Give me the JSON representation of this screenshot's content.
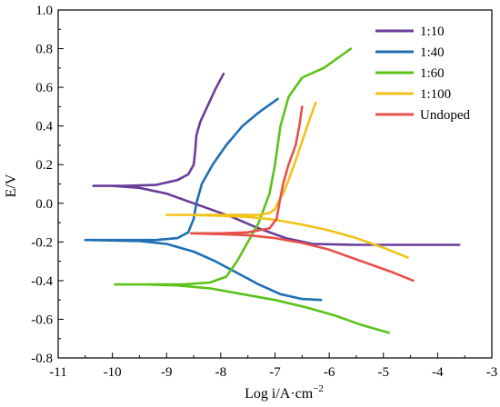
{
  "chart_data": {
    "type": "line",
    "xlabel": "Log i/A·cm",
    "xlabel_sup": "−2",
    "ylabel": "E/V",
    "xlim": [
      -11,
      -3
    ],
    "ylim": [
      -0.8,
      1.0
    ],
    "x_ticks": [
      -11,
      -10,
      -9,
      -8,
      -7,
      -6,
      -5,
      -4,
      -3
    ],
    "x_tick_labels": [
      "-11",
      "-10",
      "-9",
      "-8",
      "-7",
      "-6",
      "-5",
      "-4",
      "-3"
    ],
    "y_ticks": [
      -0.8,
      -0.6,
      -0.4,
      -0.2,
      0.0,
      0.2,
      0.4,
      0.6,
      0.8,
      1.0
    ],
    "y_tick_labels": [
      "-0.8",
      "-0.6",
      "-0.4",
      "-0.2",
      "0.0",
      "0.2",
      "0.4",
      "0.6",
      "0.8",
      "1.0"
    ],
    "grid": false,
    "legend_position": "top-right",
    "series": [
      {
        "name": "1:10",
        "color": "#6a3d9a",
        "points": [
          [
            -3.6,
            -0.215
          ],
          [
            -4.5,
            -0.215
          ],
          [
            -5.5,
            -0.215
          ],
          [
            -6.3,
            -0.21
          ],
          [
            -6.8,
            -0.18
          ],
          [
            -7.3,
            -0.13
          ],
          [
            -7.8,
            -0.07
          ],
          [
            -8.2,
            -0.03
          ],
          [
            -8.6,
            0.01
          ],
          [
            -9.0,
            0.05
          ],
          [
            -9.5,
            0.08
          ],
          [
            -10.0,
            0.09
          ],
          [
            -10.35,
            0.09
          ],
          [
            -9.8,
            0.09
          ],
          [
            -9.2,
            0.095
          ],
          [
            -8.8,
            0.12
          ],
          [
            -8.6,
            0.15
          ],
          [
            -8.5,
            0.2
          ],
          [
            -8.47,
            0.28
          ],
          [
            -8.45,
            0.35
          ],
          [
            -8.38,
            0.42
          ],
          [
            -8.25,
            0.5
          ],
          [
            -8.1,
            0.59
          ],
          [
            -7.95,
            0.67
          ]
        ]
      },
      {
        "name": "1:40",
        "color": "#1f6fb2",
        "points": [
          [
            -6.15,
            -0.5
          ],
          [
            -6.5,
            -0.495
          ],
          [
            -6.9,
            -0.47
          ],
          [
            -7.3,
            -0.42
          ],
          [
            -7.7,
            -0.36
          ],
          [
            -8.1,
            -0.3
          ],
          [
            -8.5,
            -0.25
          ],
          [
            -9.0,
            -0.21
          ],
          [
            -9.5,
            -0.195
          ],
          [
            -10.5,
            -0.19
          ],
          [
            -9.8,
            -0.19
          ],
          [
            -9.2,
            -0.19
          ],
          [
            -8.8,
            -0.18
          ],
          [
            -8.6,
            -0.15
          ],
          [
            -8.5,
            -0.08
          ],
          [
            -8.45,
            0.0
          ],
          [
            -8.35,
            0.1
          ],
          [
            -8.15,
            0.2
          ],
          [
            -7.9,
            0.3
          ],
          [
            -7.6,
            0.4
          ],
          [
            -7.3,
            0.47
          ],
          [
            -6.95,
            0.54
          ]
        ]
      },
      {
        "name": "1:60",
        "color": "#5cc21a",
        "points": [
          [
            -4.9,
            -0.67
          ],
          [
            -5.4,
            -0.63
          ],
          [
            -5.9,
            -0.58
          ],
          [
            -6.4,
            -0.54
          ],
          [
            -7.0,
            -0.5
          ],
          [
            -7.6,
            -0.47
          ],
          [
            -8.2,
            -0.44
          ],
          [
            -8.8,
            -0.425
          ],
          [
            -9.4,
            -0.42
          ],
          [
            -9.95,
            -0.42
          ],
          [
            -9.4,
            -0.42
          ],
          [
            -8.7,
            -0.42
          ],
          [
            -8.2,
            -0.41
          ],
          [
            -7.9,
            -0.38
          ],
          [
            -7.7,
            -0.3
          ],
          [
            -7.5,
            -0.2
          ],
          [
            -7.3,
            -0.1
          ],
          [
            -7.1,
            0.05
          ],
          [
            -7.0,
            0.2
          ],
          [
            -6.9,
            0.4
          ],
          [
            -6.75,
            0.55
          ],
          [
            -6.5,
            0.65
          ],
          [
            -6.1,
            0.7
          ],
          [
            -5.85,
            0.75
          ],
          [
            -5.6,
            0.8
          ]
        ]
      },
      {
        "name": "1:100",
        "color": "#f2c21a",
        "points": [
          [
            -4.55,
            -0.28
          ],
          [
            -5.0,
            -0.23
          ],
          [
            -5.5,
            -0.18
          ],
          [
            -6.0,
            -0.14
          ],
          [
            -6.5,
            -0.11
          ],
          [
            -7.0,
            -0.085
          ],
          [
            -7.5,
            -0.07
          ],
          [
            -8.0,
            -0.065
          ],
          [
            -8.6,
            -0.06
          ],
          [
            -9.0,
            -0.06
          ],
          [
            -8.5,
            -0.06
          ],
          [
            -7.8,
            -0.06
          ],
          [
            -7.3,
            -0.06
          ],
          [
            -7.1,
            -0.05
          ],
          [
            -7.0,
            -0.03
          ],
          [
            -6.95,
            0.0
          ],
          [
            -6.85,
            0.05
          ],
          [
            -6.75,
            0.12
          ],
          [
            -6.62,
            0.22
          ],
          [
            -6.5,
            0.32
          ],
          [
            -6.38,
            0.42
          ],
          [
            -6.25,
            0.52
          ]
        ]
      },
      {
        "name": "Undoped",
        "color": "#e8504a",
        "points": [
          [
            -4.45,
            -0.4
          ],
          [
            -4.8,
            -0.36
          ],
          [
            -5.2,
            -0.32
          ],
          [
            -5.6,
            -0.28
          ],
          [
            -6.0,
            -0.24
          ],
          [
            -6.5,
            -0.205
          ],
          [
            -7.0,
            -0.18
          ],
          [
            -7.5,
            -0.165
          ],
          [
            -8.0,
            -0.16
          ],
          [
            -8.55,
            -0.155
          ],
          [
            -8.0,
            -0.155
          ],
          [
            -7.5,
            -0.15
          ],
          [
            -7.1,
            -0.13
          ],
          [
            -6.97,
            -0.08
          ],
          [
            -6.92,
            0.0
          ],
          [
            -6.85,
            0.1
          ],
          [
            -6.75,
            0.2
          ],
          [
            -6.62,
            0.3
          ],
          [
            -6.55,
            0.4
          ],
          [
            -6.5,
            0.5
          ]
        ]
      }
    ]
  }
}
